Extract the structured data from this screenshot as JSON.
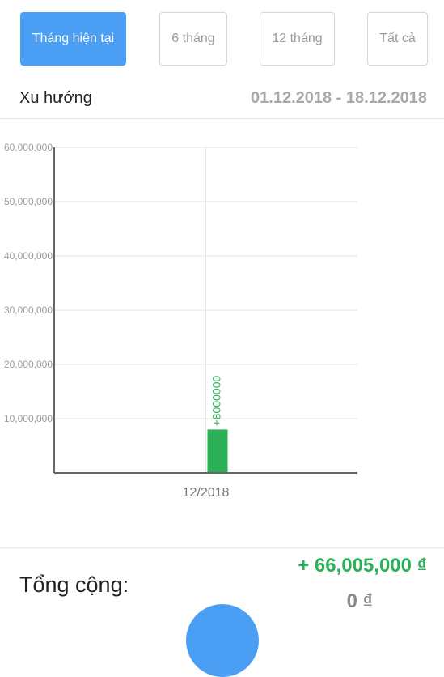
{
  "tabs": [
    {
      "label": "Tháng hiện tại",
      "active": true
    },
    {
      "label": "6 tháng",
      "active": false
    },
    {
      "label": "12 tháng",
      "active": false
    },
    {
      "label": "Tất cả",
      "active": false
    }
  ],
  "trend": {
    "label": "Xu hướng",
    "date_range": "01.12.2018 - 18.12.2018"
  },
  "chart_data": {
    "type": "bar",
    "categories": [
      "12/2018"
    ],
    "series": [
      {
        "values": [
          8000000
        ],
        "color": "#2bb057"
      },
      {
        "values": [
          0
        ],
        "color": "#e53935"
      }
    ],
    "data_labels": [
      "+8000000"
    ],
    "yticks": [
      "10,000,000",
      "20,000,000",
      "30,000,000",
      "40,000,000",
      "50,000,000",
      "60,000,000"
    ],
    "ylim": [
      0,
      60000000
    ],
    "grid": true
  },
  "totals": {
    "label": "Tổng cộng:",
    "income": "+ 66,005,000 ₫",
    "expense": "0 ₫"
  },
  "colors": {
    "accent": "#4a9ff5",
    "income": "#2bb057",
    "expense_bar": "#e53935"
  }
}
